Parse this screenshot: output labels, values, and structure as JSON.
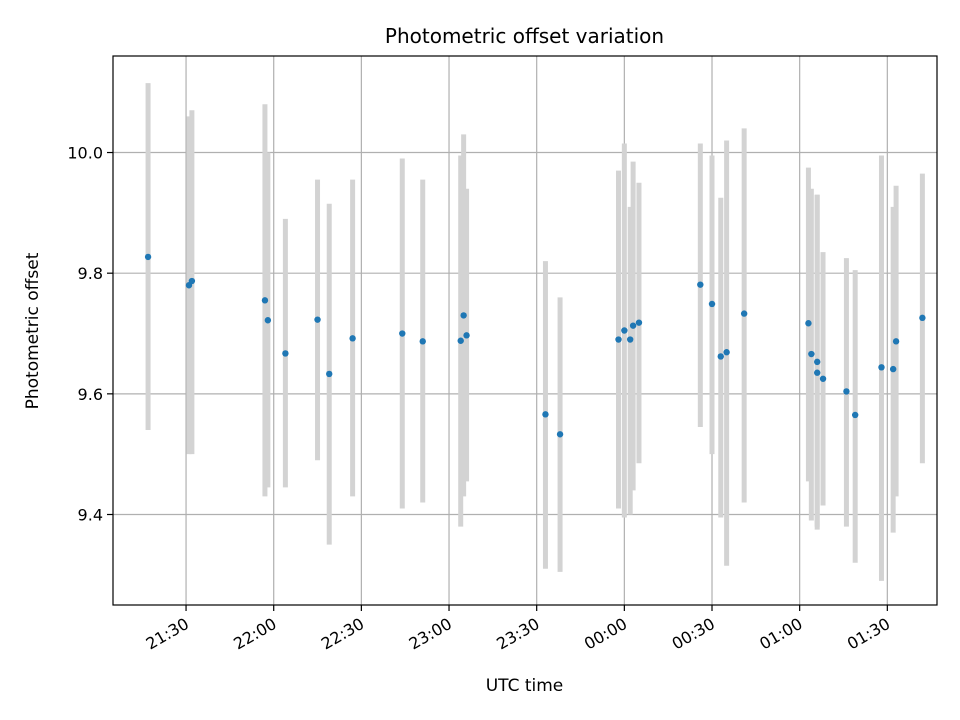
{
  "chart_data": {
    "type": "scatter",
    "title": "Photometric offset variation",
    "xlabel": "UTC time",
    "ylabel": "Photometric offset",
    "grid": true,
    "x_tick_labels": [
      "21:30",
      "22:00",
      "22:30",
      "23:00",
      "23:30",
      "00:00",
      "00:30",
      "01:00",
      "01:30"
    ],
    "x_ticks": [
      "21:30",
      "22:00",
      "22:30",
      "23:00",
      "23:30",
      "24:00",
      "24:30",
      "25:00",
      "25:30"
    ],
    "xlim": [
      "21:05",
      "25:47"
    ],
    "y_ticks": [
      9.4,
      9.6,
      9.8,
      10.0
    ],
    "ylim": [
      9.25,
      10.16
    ],
    "marker_color": "#1f77b4",
    "errorbar_color": "#d3d3d3",
    "series": [
      {
        "points": [
          {
            "x": "21:17",
            "y": 9.827,
            "yerr": [
              9.54,
              10.115
            ]
          },
          {
            "x": "21:31",
            "y": 9.78,
            "yerr": [
              9.5,
              10.06
            ]
          },
          {
            "x": "21:32",
            "y": 9.787,
            "yerr": [
              9.5,
              10.07
            ]
          },
          {
            "x": "21:57",
            "y": 9.755,
            "yerr": [
              9.43,
              10.08
            ]
          },
          {
            "x": "21:58",
            "y": 9.722,
            "yerr": [
              9.445,
              10.0
            ]
          },
          {
            "x": "22:04",
            "y": 9.667,
            "yerr": [
              9.445,
              9.89
            ]
          },
          {
            "x": "22:15",
            "y": 9.723,
            "yerr": [
              9.49,
              9.955
            ]
          },
          {
            "x": "22:19",
            "y": 9.633,
            "yerr": [
              9.35,
              9.915
            ]
          },
          {
            "x": "22:27",
            "y": 9.692,
            "yerr": [
              9.43,
              9.955
            ]
          },
          {
            "x": "22:44",
            "y": 9.7,
            "yerr": [
              9.41,
              9.99
            ]
          },
          {
            "x": "22:51",
            "y": 9.687,
            "yerr": [
              9.42,
              9.955
            ]
          },
          {
            "x": "23:04",
            "y": 9.688,
            "yerr": [
              9.38,
              9.995
            ]
          },
          {
            "x": "23:05",
            "y": 9.73,
            "yerr": [
              9.43,
              10.03
            ]
          },
          {
            "x": "23:06",
            "y": 9.697,
            "yerr": [
              9.455,
              9.94
            ]
          },
          {
            "x": "23:33",
            "y": 9.566,
            "yerr": [
              9.31,
              9.82
            ]
          },
          {
            "x": "23:38",
            "y": 9.533,
            "yerr": [
              9.305,
              9.76
            ]
          },
          {
            "x": "23:58",
            "y": 9.69,
            "yerr": [
              9.41,
              9.97
            ]
          },
          {
            "x": "24:00",
            "y": 9.705,
            "yerr": [
              9.395,
              10.015
            ]
          },
          {
            "x": "24:02",
            "y": 9.69,
            "yerr": [
              9.4,
              9.91
            ]
          },
          {
            "x": "24:03",
            "y": 9.713,
            "yerr": [
              9.44,
              9.985
            ]
          },
          {
            "x": "24:05",
            "y": 9.718,
            "yerr": [
              9.485,
              9.95
            ]
          },
          {
            "x": "24:26",
            "y": 9.781,
            "yerr": [
              9.545,
              10.015
            ]
          },
          {
            "x": "24:30",
            "y": 9.749,
            "yerr": [
              9.5,
              9.995
            ]
          },
          {
            "x": "24:33",
            "y": 9.662,
            "yerr": [
              9.395,
              9.925
            ]
          },
          {
            "x": "24:35",
            "y": 9.669,
            "yerr": [
              9.315,
              10.02
            ]
          },
          {
            "x": "24:41",
            "y": 9.733,
            "yerr": [
              9.42,
              10.04
            ]
          },
          {
            "x": "25:03",
            "y": 9.717,
            "yerr": [
              9.455,
              9.975
            ]
          },
          {
            "x": "25:04",
            "y": 9.666,
            "yerr": [
              9.39,
              9.94
            ]
          },
          {
            "x": "25:06",
            "y": 9.635,
            "yerr": [
              9.375,
              9.93
            ]
          },
          {
            "x": "25:06",
            "y": 9.653,
            "yerr": [
              9.38,
              9.93
            ]
          },
          {
            "x": "25:08",
            "y": 9.625,
            "yerr": [
              9.415,
              9.835
            ]
          },
          {
            "x": "25:16",
            "y": 9.604,
            "yerr": [
              9.38,
              9.825
            ]
          },
          {
            "x": "25:19",
            "y": 9.565,
            "yerr": [
              9.32,
              9.805
            ]
          },
          {
            "x": "25:28",
            "y": 9.644,
            "yerr": [
              9.29,
              9.995
            ]
          },
          {
            "x": "25:32",
            "y": 9.641,
            "yerr": [
              9.37,
              9.91
            ]
          },
          {
            "x": "25:33",
            "y": 9.687,
            "yerr": [
              9.43,
              9.945
            ]
          },
          {
            "x": "25:42",
            "y": 9.726,
            "yerr": [
              9.485,
              9.965
            ]
          }
        ]
      }
    ]
  }
}
